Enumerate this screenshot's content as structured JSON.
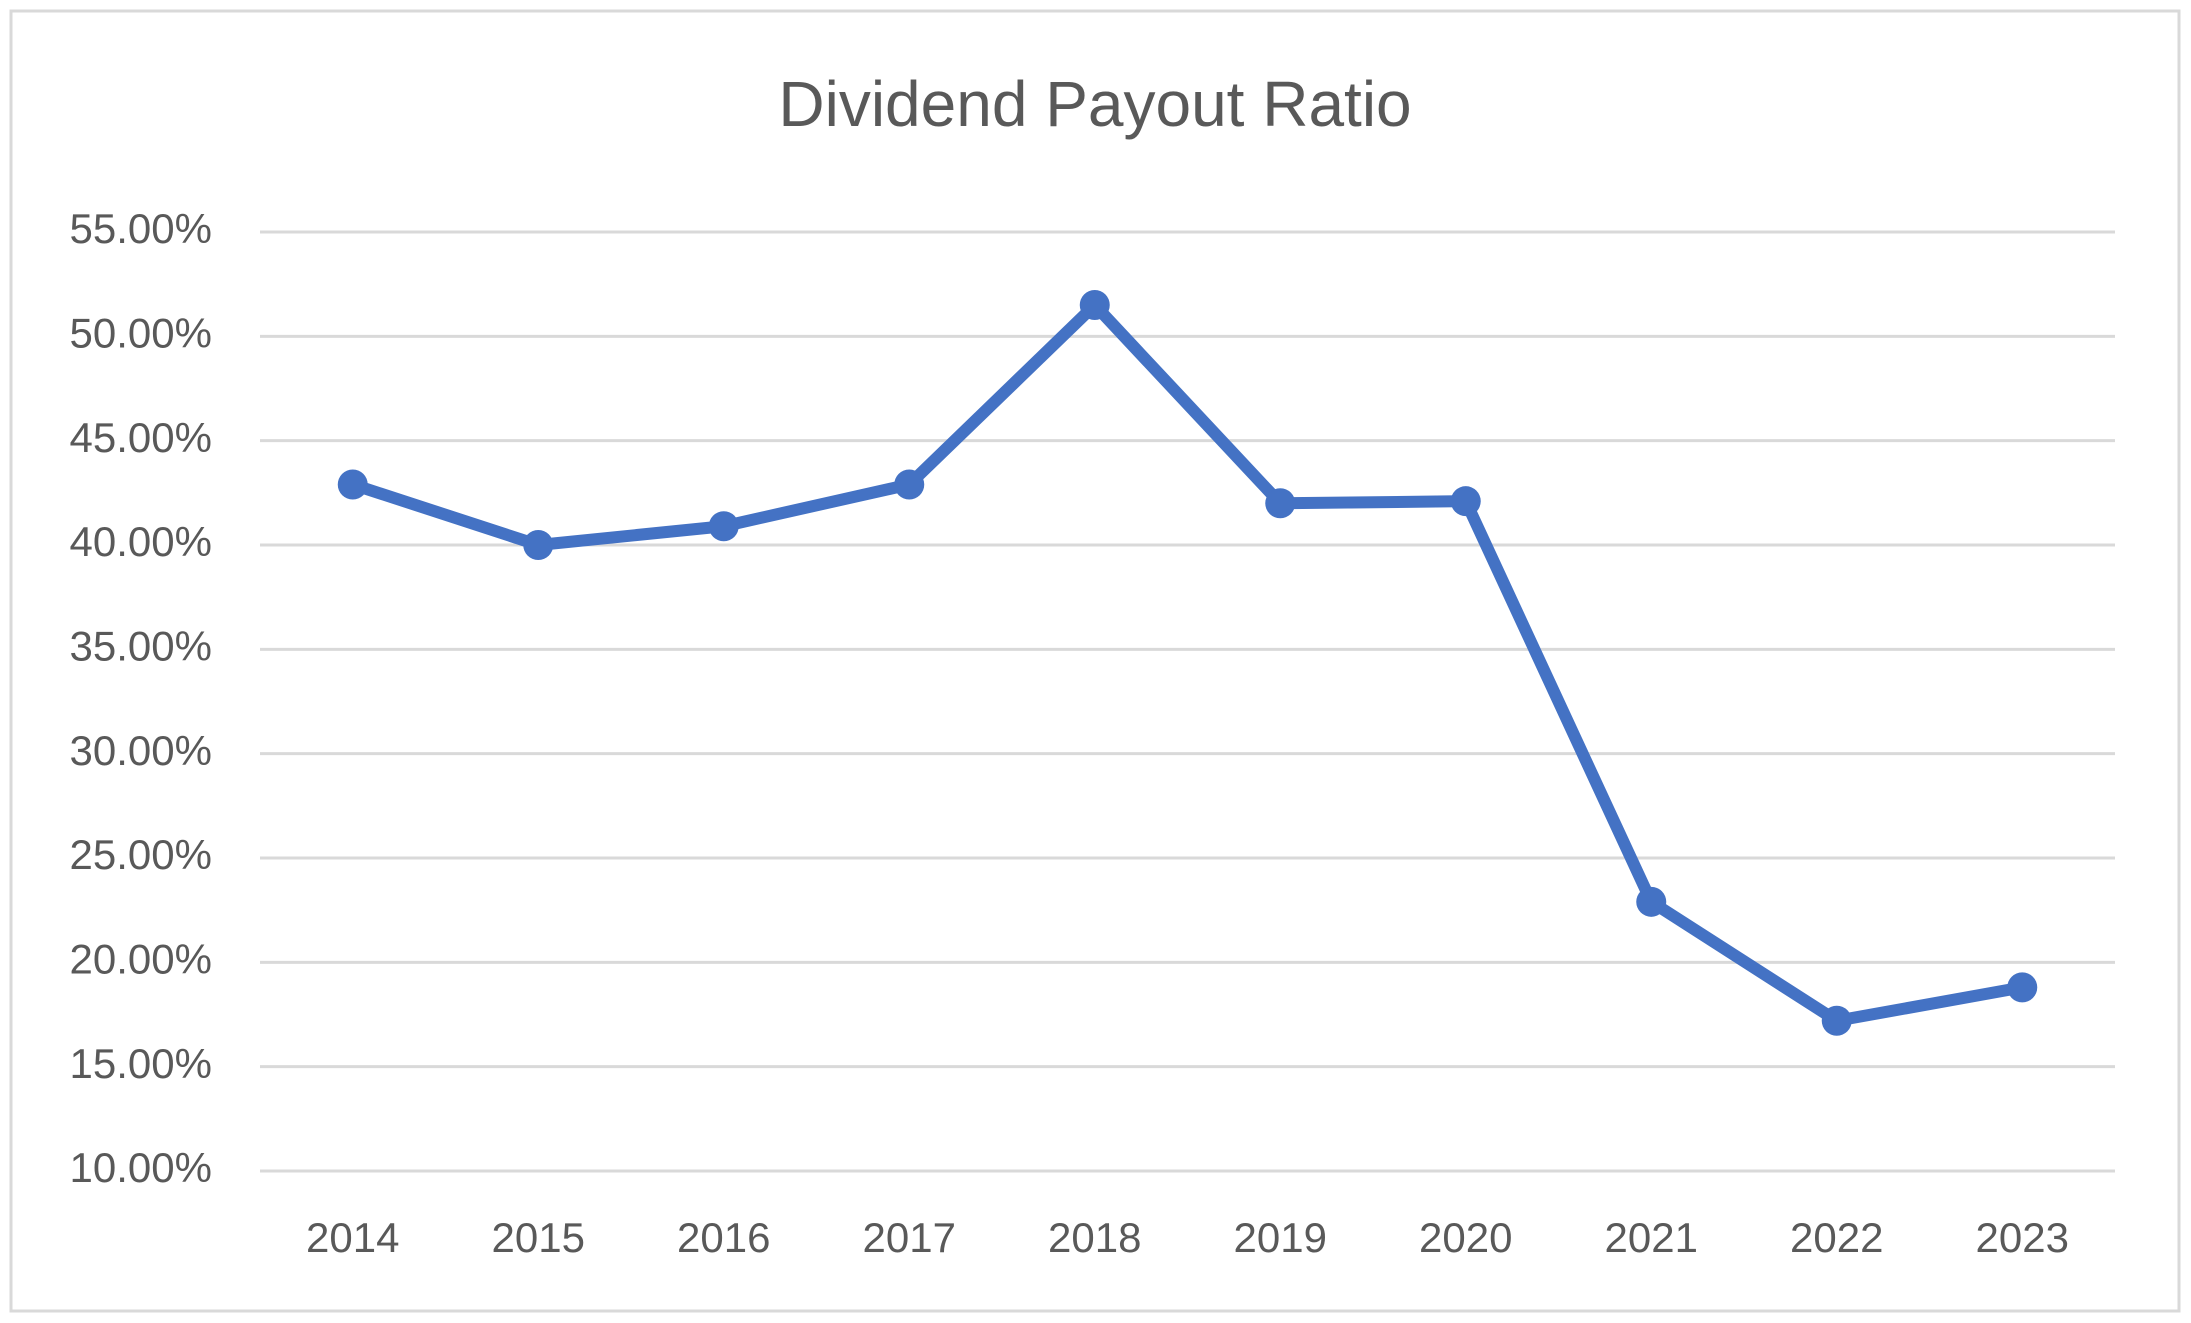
{
  "chart_data": {
    "type": "line",
    "title": "Dividend Payout Ratio",
    "categories": [
      "2014",
      "2015",
      "2016",
      "2017",
      "2018",
      "2019",
      "2020",
      "2021",
      "2022",
      "2023"
    ],
    "values": [
      42.9,
      40.0,
      40.9,
      42.9,
      51.5,
      42.0,
      42.1,
      22.9,
      17.2,
      18.8
    ],
    "color": "#4472c4",
    "ylim": [
      10,
      55
    ],
    "yticks": [
      {
        "value": 10,
        "label": "10.00%"
      },
      {
        "value": 15,
        "label": "15.00%"
      },
      {
        "value": 20,
        "label": "20.00%"
      },
      {
        "value": 25,
        "label": "25.00%"
      },
      {
        "value": 30,
        "label": "30.00%"
      },
      {
        "value": 35,
        "label": "35.00%"
      },
      {
        "value": 40,
        "label": "40.00%"
      },
      {
        "value": 45,
        "label": "45.00%"
      },
      {
        "value": 50,
        "label": "50.00%"
      },
      {
        "value": 55,
        "label": "55.00%"
      }
    ],
    "grid": true
  }
}
